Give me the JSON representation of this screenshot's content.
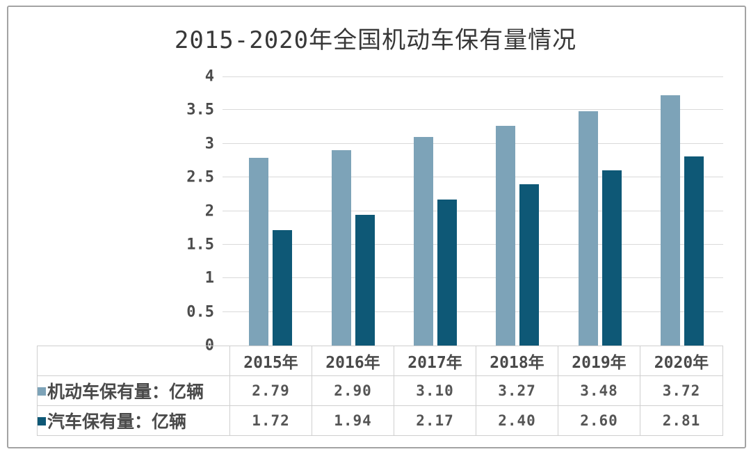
{
  "chart_data": {
    "type": "bar",
    "title": "2015-2020年全国机动车保有量情况",
    "categories": [
      "2015年",
      "2016年",
      "2017年",
      "2018年",
      "2019年",
      "2020年"
    ],
    "series": [
      {
        "name": "机动车保有量：亿辆",
        "color": "#7DA3B8",
        "values": [
          2.79,
          2.9,
          3.1,
          3.27,
          3.48,
          3.72
        ],
        "labels": [
          "2.79",
          "2.90",
          "3.10",
          "3.27",
          "3.48",
          "3.72"
        ]
      },
      {
        "name": "汽车保有量：亿辆",
        "color": "#0E5876",
        "values": [
          1.72,
          1.94,
          2.17,
          2.4,
          2.6,
          2.81
        ],
        "labels": [
          "1.72",
          "1.94",
          "2.17",
          "2.40",
          "2.60",
          "2.81"
        ]
      }
    ],
    "ylim": [
      0,
      4
    ],
    "ytick_step": 0.5,
    "ytick_labels": [
      "0",
      "0.5",
      "1",
      "1.5",
      "2",
      "2.5",
      "3",
      "3.5",
      "4"
    ],
    "grid": true,
    "legend_position": "table-rows-left",
    "xlabel": "",
    "ylabel": ""
  },
  "colors": {
    "series_motor": "#7DA3B8",
    "series_car": "#0E5876",
    "gridline": "#D9D9D9",
    "table_border": "#CFCFCF",
    "frame_border": "#A3A3A3",
    "text": "#4C4C4C",
    "background": "#FFFFFF"
  }
}
